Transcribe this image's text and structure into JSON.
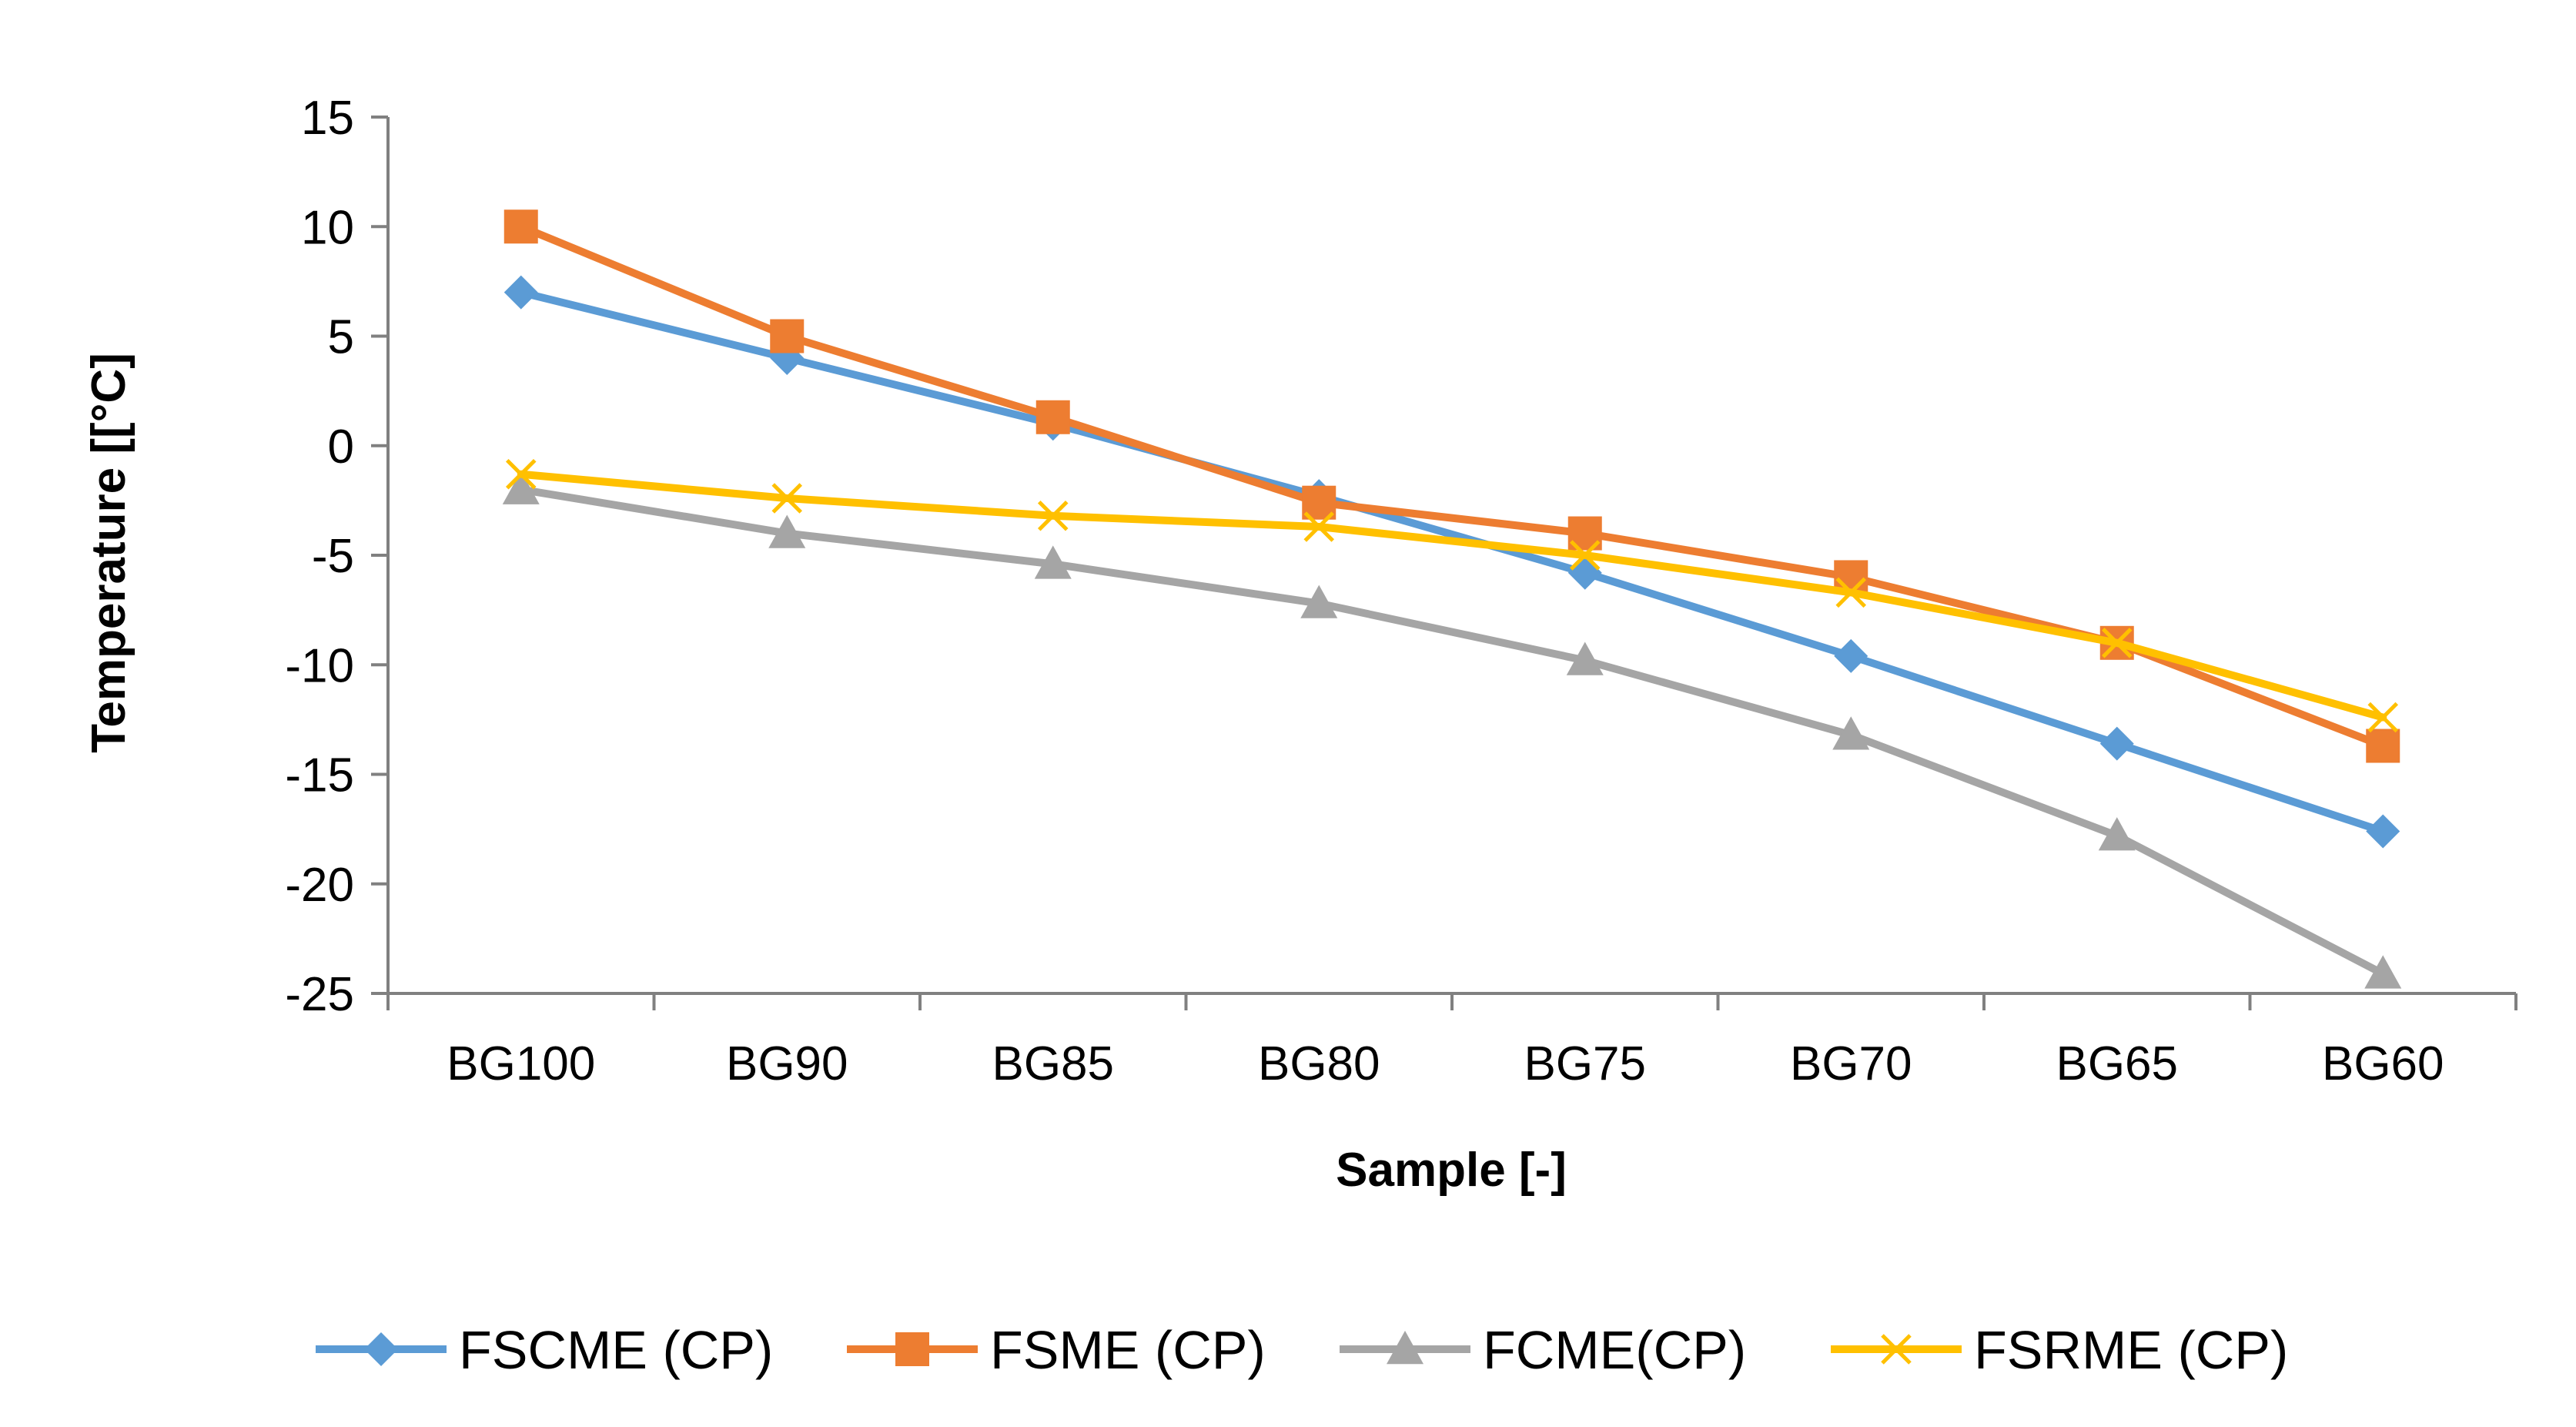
{
  "chart_data": {
    "type": "line",
    "title": "",
    "xlabel": "Sample [-]",
    "ylabel": "Temperature [[°C]",
    "ylim": [
      -25,
      15
    ],
    "yticks": [
      15,
      10,
      5,
      0,
      -5,
      -10,
      -15,
      -20,
      -25
    ],
    "grid": false,
    "legend_position": "bottom",
    "categories": [
      "BG100",
      "BG90",
      "BG85",
      "BG80",
      "BG75",
      "BG70",
      "BG65",
      "BG60"
    ],
    "series": [
      {
        "name": "FSCME (CP)",
        "color": "#5B9BD5",
        "marker": "diamond",
        "values": [
          7,
          4,
          1,
          -2.3,
          -5.8,
          -9.6,
          -13.6,
          -17.6
        ]
      },
      {
        "name": "FSME (CP)",
        "color": "#ED7D31",
        "marker": "square",
        "values": [
          10,
          5,
          1.3,
          -2.6,
          -4,
          -6,
          -9,
          -13.7
        ]
      },
      {
        "name": "FCME(CP)",
        "color": "#A5A5A5",
        "marker": "triangle",
        "values": [
          -2,
          -4,
          -5.4,
          -7.2,
          -9.8,
          -13.2,
          -17.8,
          -24.1
        ]
      },
      {
        "name": "FSRME (CP)",
        "color": "#FFC000",
        "marker": "x",
        "values": [
          -1.3,
          -2.4,
          -3.2,
          -3.7,
          -5,
          -6.7,
          -9,
          -12.4
        ]
      }
    ]
  }
}
